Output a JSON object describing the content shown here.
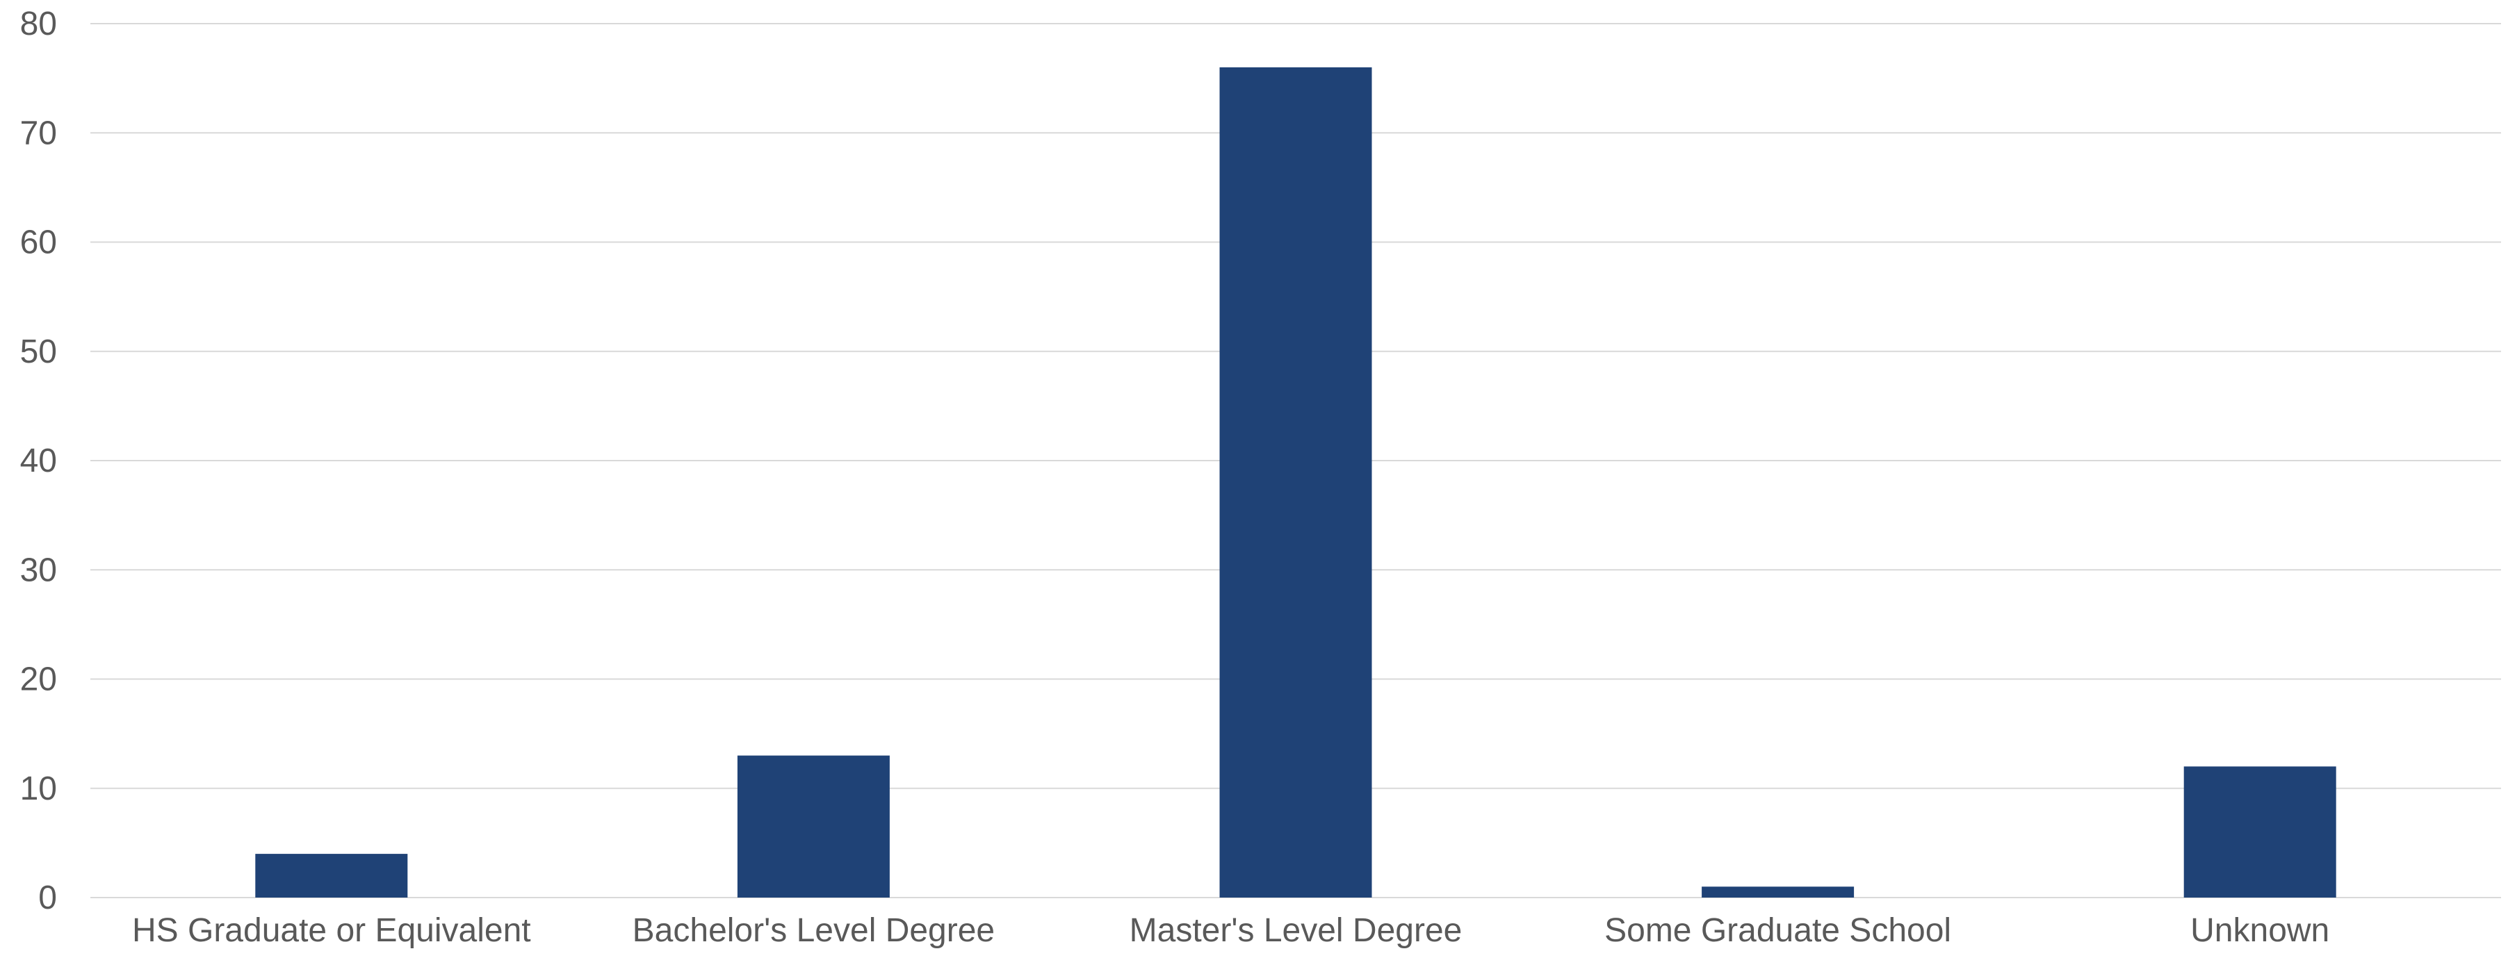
{
  "chart_data": {
    "type": "bar",
    "categories": [
      "HS Graduate or Equivalent",
      "Bachelor's Level Degree",
      "Master's Level Degree",
      "Some Graduate School",
      "Unknown"
    ],
    "values": [
      4,
      13,
      76,
      1,
      12
    ],
    "title": "",
    "xlabel": "",
    "ylabel": "",
    "ylim": [
      0,
      80
    ],
    "yticks": [
      0,
      10,
      20,
      30,
      40,
      50,
      60,
      70,
      80
    ],
    "grid": true,
    "legend": "none",
    "bar_color": "#1f4276",
    "grid_color": "#d9d9d9",
    "text_color": "#595959"
  }
}
